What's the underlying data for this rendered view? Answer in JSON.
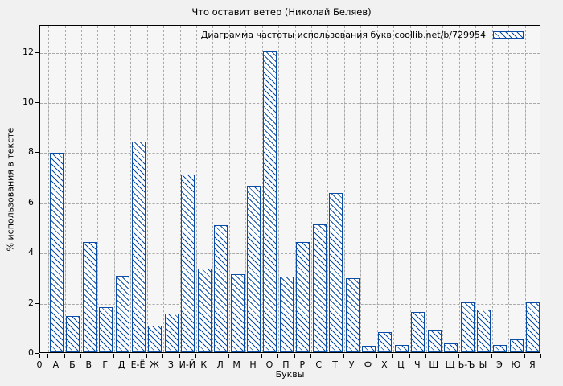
{
  "figure": {
    "background": "#f1f1f1",
    "accent_color": "#0b4da6",
    "grid_color": "#a9a9a9"
  },
  "chart_data": {
    "type": "bar",
    "title": "Что оставит ветер (Николай Беляев)",
    "legend_label": "Диаграмма частоты использования букв coollib.net/b/729954",
    "legend_position": "top-right-inside",
    "xlabel": "Буквы",
    "ylabel": "% использования в тексте",
    "origin_tick_label": "0",
    "ylim": [
      0,
      13.08
    ],
    "yticks": [
      0,
      2,
      4,
      6,
      8,
      10,
      12
    ],
    "grid": true,
    "bar_style": "blue diagonal hatch on white, blue outline",
    "categories": [
      "А",
      "Б",
      "В",
      "Г",
      "Д",
      "Е-Ё",
      "Ж",
      "З",
      "И-Й",
      "К",
      "Л",
      "М",
      "Н",
      "О",
      "П",
      "Р",
      "С",
      "Т",
      "У",
      "Ф",
      "Х",
      "Ц",
      "Ч",
      "Ш",
      "Щ",
      "Ь-Ъ",
      "Ы",
      "Э",
      "Ю",
      "Я"
    ],
    "values": [
      7.95,
      1.45,
      4.4,
      1.8,
      3.05,
      8.4,
      1.05,
      1.55,
      7.1,
      3.35,
      5.05,
      3.1,
      6.65,
      12.0,
      3.0,
      4.4,
      5.1,
      6.35,
      2.95,
      0.25,
      0.8,
      0.3,
      1.6,
      0.9,
      0.35,
      2.0,
      1.7,
      0.3,
      0.5,
      2.0
    ]
  }
}
